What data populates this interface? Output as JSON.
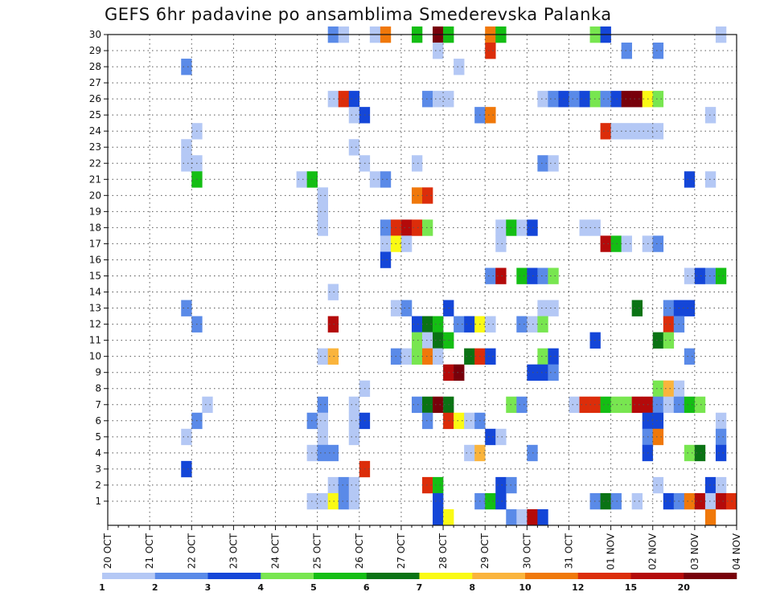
{
  "chart_data": {
    "type": "heatmap",
    "title": "GEFS 6hr padavine po ansamblima Smederevska Palanka",
    "x_tick_labels": [
      "20 OCT",
      "21 OCT",
      "22 OCT",
      "23 OCT",
      "24 OCT",
      "25 OCT",
      "26 OCT",
      "27 OCT",
      "28 OCT",
      "29 OCT",
      "30 OCT",
      "31 OCT",
      "01 NOV",
      "02 NOV",
      "03 NOV",
      "04 NOV"
    ],
    "y_tick_labels": [
      "1",
      "2",
      "3",
      "4",
      "5",
      "6",
      "7",
      "8",
      "9",
      "10",
      "11",
      "12",
      "13",
      "14",
      "15",
      "16",
      "17",
      "18",
      "19",
      "20",
      "21",
      "22",
      "23",
      "24",
      "25",
      "26",
      "27",
      "28",
      "29",
      "30"
    ],
    "steps_per_day": 4,
    "num_steps": 60,
    "num_members": 30,
    "grid": true,
    "legend_position": "bottom",
    "legend_thresholds": [
      "1",
      "2",
      "3",
      "4",
      "5",
      "6",
      "7",
      "8",
      "10",
      "12",
      "15",
      "20"
    ],
    "legend_colors": [
      "#b4c8f5",
      "#5a8ae8",
      "#1446d8",
      "#78e650",
      "#14be14",
      "#0a7314",
      "#fafa14",
      "#fab43c",
      "#f0780a",
      "#dc2d0a",
      "#b40a0a",
      "#78000a"
    ],
    "cells": [
      {
        "m": 30,
        "c": [
          [
            21,
            2
          ],
          [
            22,
            1
          ],
          [
            25,
            1
          ],
          [
            26,
            9
          ],
          [
            29,
            5
          ],
          [
            31,
            12
          ],
          [
            32,
            5
          ],
          [
            36,
            9
          ],
          [
            37,
            5
          ],
          [
            46,
            4
          ],
          [
            47,
            3
          ],
          [
            58,
            1
          ]
        ]
      },
      {
        "m": 29,
        "c": [
          [
            31,
            1
          ],
          [
            36,
            10
          ],
          [
            49,
            2
          ],
          [
            52,
            2
          ]
        ]
      },
      {
        "m": 28,
        "c": [
          [
            7,
            2
          ],
          [
            33,
            1
          ]
        ]
      },
      {
        "m": 26,
        "c": [
          [
            21,
            1
          ],
          [
            22,
            10
          ],
          [
            23,
            3
          ],
          [
            30,
            2
          ],
          [
            31,
            1
          ],
          [
            32,
            1
          ],
          [
            41,
            1
          ],
          [
            42,
            2
          ],
          [
            43,
            3
          ],
          [
            44,
            2
          ],
          [
            45,
            3
          ],
          [
            46,
            4
          ],
          [
            47,
            2
          ],
          [
            48,
            3
          ],
          [
            49,
            12
          ],
          [
            50,
            12
          ],
          [
            51,
            7
          ],
          [
            52,
            4
          ]
        ]
      },
      {
        "m": 25,
        "c": [
          [
            23,
            1
          ],
          [
            24,
            3
          ],
          [
            35,
            2
          ],
          [
            36,
            9
          ],
          [
            57,
            1
          ]
        ]
      },
      {
        "m": 24,
        "c": [
          [
            8,
            1
          ],
          [
            47,
            10
          ],
          [
            48,
            1
          ],
          [
            49,
            1
          ],
          [
            50,
            1
          ],
          [
            51,
            1
          ],
          [
            52,
            1
          ]
        ]
      },
      {
        "m": 23,
        "c": [
          [
            7,
            1
          ],
          [
            23,
            1
          ]
        ]
      },
      {
        "m": 22,
        "c": [
          [
            7,
            1
          ],
          [
            8,
            1
          ],
          [
            24,
            1
          ],
          [
            29,
            1
          ],
          [
            41,
            2
          ],
          [
            42,
            1
          ]
        ]
      },
      {
        "m": 21,
        "c": [
          [
            18,
            1
          ],
          [
            19,
            5
          ],
          [
            8,
            5
          ],
          [
            25,
            1
          ],
          [
            26,
            2
          ],
          [
            55,
            3
          ],
          [
            57,
            1
          ]
        ]
      },
      {
        "m": 20,
        "c": [
          [
            20,
            1
          ],
          [
            29,
            9
          ],
          [
            30,
            10
          ]
        ]
      },
      {
        "m": 19,
        "c": [
          [
            20,
            1
          ]
        ]
      },
      {
        "m": 18,
        "c": [
          [
            20,
            1
          ],
          [
            26,
            2
          ],
          [
            27,
            10
          ],
          [
            28,
            11
          ],
          [
            29,
            10
          ],
          [
            30,
            4
          ],
          [
            37,
            1
          ],
          [
            38,
            5
          ],
          [
            39,
            1
          ],
          [
            40,
            3
          ],
          [
            45,
            1
          ],
          [
            46,
            1
          ]
        ]
      },
      {
        "m": 17,
        "c": [
          [
            26,
            1
          ],
          [
            27,
            7
          ],
          [
            28,
            1
          ],
          [
            37,
            1
          ],
          [
            47,
            11
          ],
          [
            48,
            5
          ],
          [
            49,
            1
          ],
          [
            51,
            1
          ],
          [
            52,
            2
          ]
        ]
      },
      {
        "m": 16,
        "c": [
          [
            26,
            3
          ]
        ]
      },
      {
        "m": 15,
        "c": [
          [
            36,
            2
          ],
          [
            37,
            11
          ],
          [
            39,
            5
          ],
          [
            40,
            3
          ],
          [
            41,
            2
          ],
          [
            42,
            4
          ],
          [
            55,
            1
          ],
          [
            56,
            3
          ],
          [
            57,
            2
          ],
          [
            58,
            5
          ]
        ]
      },
      {
        "m": 14,
        "c": [
          [
            21,
            1
          ]
        ]
      },
      {
        "m": 13,
        "c": [
          [
            7,
            2
          ],
          [
            27,
            1
          ],
          [
            28,
            2
          ],
          [
            32,
            3
          ],
          [
            41,
            1
          ],
          [
            42,
            1
          ],
          [
            50,
            6
          ],
          [
            53,
            2
          ],
          [
            54,
            3
          ],
          [
            55,
            3
          ]
        ]
      },
      {
        "m": 12,
        "c": [
          [
            8,
            2
          ],
          [
            21,
            11
          ],
          [
            29,
            3
          ],
          [
            30,
            6
          ],
          [
            31,
            5
          ],
          [
            33,
            2
          ],
          [
            34,
            3
          ],
          [
            35,
            7
          ],
          [
            36,
            1
          ],
          [
            39,
            2
          ],
          [
            40,
            1
          ],
          [
            41,
            4
          ],
          [
            53,
            10
          ],
          [
            54,
            2
          ]
        ]
      },
      {
        "m": 11,
        "c": [
          [
            29,
            4
          ],
          [
            30,
            1
          ],
          [
            31,
            6
          ],
          [
            32,
            5
          ],
          [
            46,
            3
          ],
          [
            52,
            6
          ],
          [
            53,
            4
          ]
        ]
      },
      {
        "m": 10,
        "c": [
          [
            20,
            1
          ],
          [
            21,
            8
          ],
          [
            27,
            2
          ],
          [
            28,
            1
          ],
          [
            29,
            4
          ],
          [
            30,
            9
          ],
          [
            31,
            1
          ],
          [
            34,
            6
          ],
          [
            35,
            10
          ],
          [
            36,
            3
          ],
          [
            41,
            4
          ],
          [
            42,
            3
          ],
          [
            55,
            2
          ]
        ]
      },
      {
        "m": 9,
        "c": [
          [
            32,
            11
          ],
          [
            33,
            12
          ],
          [
            40,
            3
          ],
          [
            41,
            3
          ],
          [
            42,
            2
          ]
        ]
      },
      {
        "m": 8,
        "c": [
          [
            24,
            1
          ],
          [
            52,
            4
          ],
          [
            53,
            8
          ],
          [
            54,
            1
          ]
        ]
      },
      {
        "m": 7,
        "c": [
          [
            9,
            1
          ],
          [
            20,
            2
          ],
          [
            23,
            1
          ],
          [
            29,
            2
          ],
          [
            30,
            6
          ],
          [
            31,
            12
          ],
          [
            32,
            6
          ],
          [
            38,
            4
          ],
          [
            39,
            2
          ],
          [
            44,
            1
          ],
          [
            45,
            10
          ],
          [
            46,
            10
          ],
          [
            47,
            5
          ],
          [
            48,
            4
          ],
          [
            49,
            4
          ],
          [
            50,
            11
          ],
          [
            51,
            11
          ],
          [
            52,
            2
          ],
          [
            53,
            1
          ],
          [
            54,
            2
          ],
          [
            55,
            5
          ],
          [
            56,
            4
          ]
        ]
      },
      {
        "m": 6,
        "c": [
          [
            8,
            2
          ],
          [
            19,
            2
          ],
          [
            20,
            1
          ],
          [
            23,
            1
          ],
          [
            24,
            3
          ],
          [
            30,
            2
          ],
          [
            32,
            10
          ],
          [
            33,
            7
          ],
          [
            34,
            1
          ],
          [
            35,
            2
          ],
          [
            51,
            3
          ],
          [
            52,
            3
          ],
          [
            58,
            1
          ]
        ]
      },
      {
        "m": 5,
        "c": [
          [
            7,
            1
          ],
          [
            20,
            1
          ],
          [
            23,
            1
          ],
          [
            36,
            3
          ],
          [
            37,
            1
          ],
          [
            51,
            2
          ],
          [
            52,
            9
          ],
          [
            58,
            2
          ]
        ]
      },
      {
        "m": 4,
        "c": [
          [
            19,
            1
          ],
          [
            20,
            2
          ],
          [
            21,
            2
          ],
          [
            34,
            1
          ],
          [
            35,
            8
          ],
          [
            40,
            2
          ],
          [
            51,
            3
          ],
          [
            55,
            4
          ],
          [
            56,
            6
          ],
          [
            58,
            3
          ]
        ]
      },
      {
        "m": 3,
        "c": [
          [
            7,
            3
          ],
          [
            24,
            10
          ]
        ]
      },
      {
        "m": 2,
        "c": [
          [
            21,
            1
          ],
          [
            22,
            2
          ],
          [
            23,
            1
          ],
          [
            30,
            10
          ],
          [
            31,
            5
          ],
          [
            37,
            3
          ],
          [
            38,
            2
          ],
          [
            52,
            1
          ],
          [
            57,
            3
          ],
          [
            58,
            1
          ]
        ]
      },
      {
        "m": 1,
        "c": [
          [
            19,
            1
          ],
          [
            20,
            1
          ],
          [
            21,
            7
          ],
          [
            22,
            2
          ],
          [
            23,
            1
          ],
          [
            31,
            3
          ],
          [
            35,
            2
          ],
          [
            36,
            5
          ],
          [
            37,
            3
          ],
          [
            46,
            2
          ],
          [
            47,
            6
          ],
          [
            48,
            2
          ],
          [
            50,
            1
          ],
          [
            53,
            3
          ],
          [
            54,
            2
          ],
          [
            55,
            9
          ],
          [
            56,
            11
          ],
          [
            57,
            1
          ],
          [
            58,
            11
          ],
          [
            59,
            10
          ]
        ]
      },
      {
        "m": 0,
        "c": [
          [
            31,
            3
          ],
          [
            32,
            7
          ],
          [
            38,
            2
          ],
          [
            39,
            1
          ],
          [
            40,
            11
          ],
          [
            41,
            3
          ],
          [
            57,
            9
          ]
        ]
      }
    ]
  }
}
